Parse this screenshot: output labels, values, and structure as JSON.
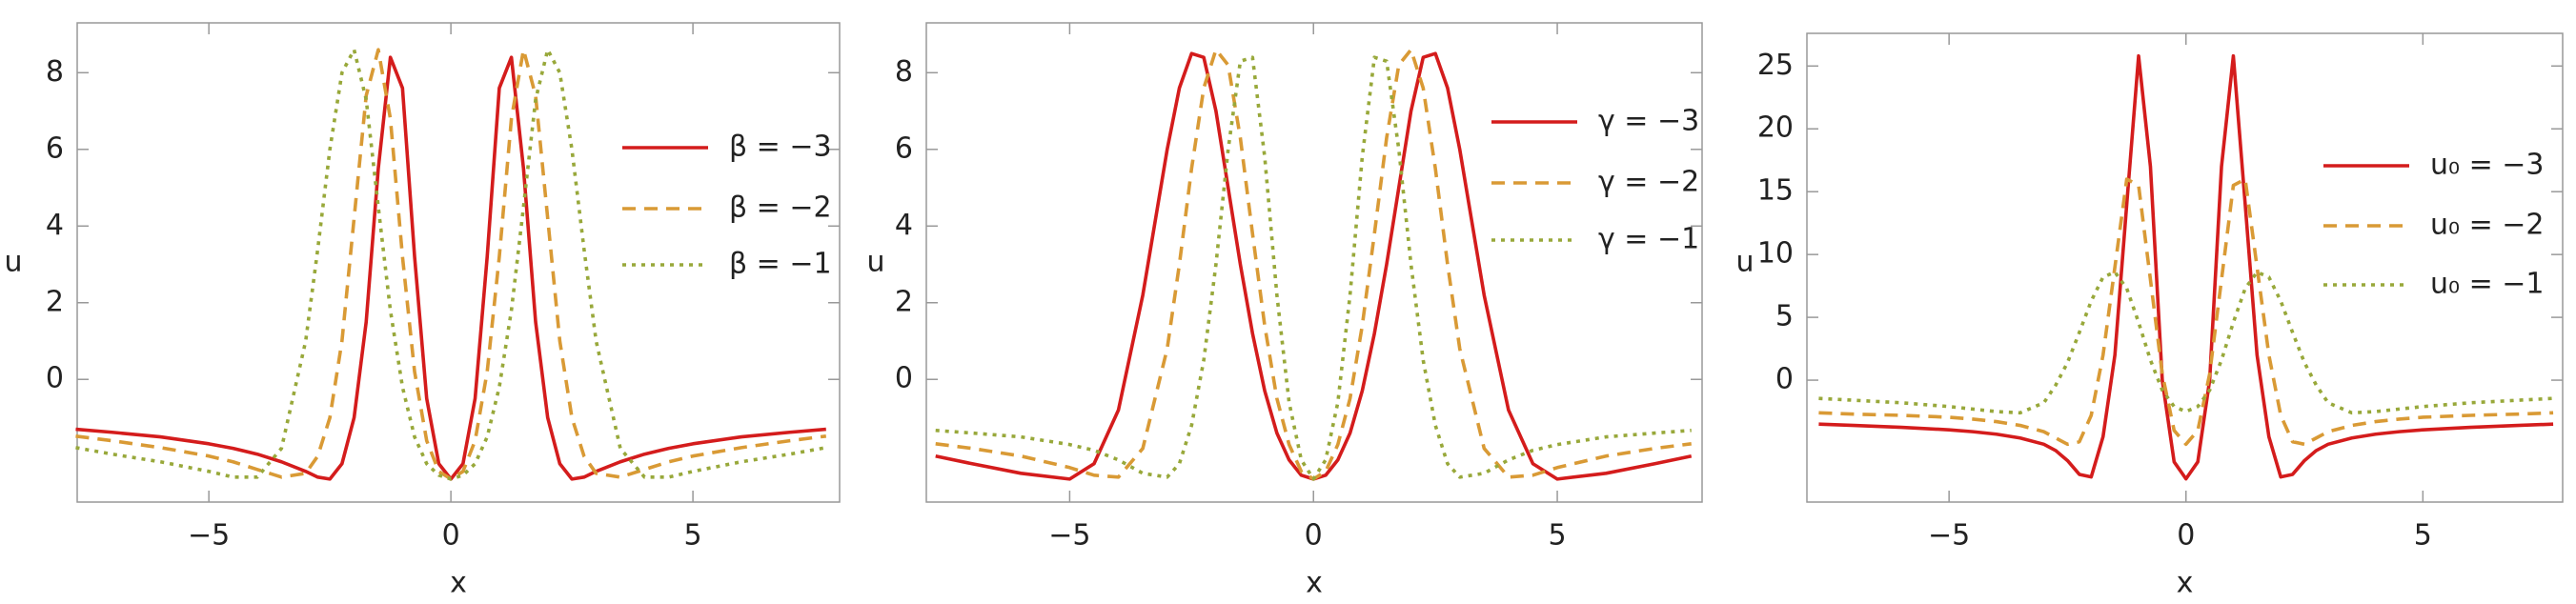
{
  "chart_data": [
    {
      "type": "line",
      "x_label": "x",
      "y_label": "u",
      "xlim": [
        -7.72,
        8.03
      ],
      "ylim": [
        -3.2,
        9.3
      ],
      "xticks": [
        {
          "value": -5,
          "label": "−5"
        },
        0,
        5
      ],
      "yticks": [
        0,
        2,
        4,
        6,
        8
      ],
      "x": [
        -7.75,
        -7,
        -6,
        -5,
        -4.5,
        -4,
        -3.5,
        -3,
        -2.75,
        -2.5,
        -2.25,
        -2,
        -1.75,
        -1.5,
        -1.25,
        -1,
        -0.75,
        -0.5,
        -0.25,
        0,
        0.25,
        0.5,
        0.75,
        1,
        1.25,
        1.5,
        1.75,
        2,
        2.25,
        2.5,
        2.75,
        3,
        3.5,
        4,
        4.5,
        5,
        6,
        7,
        7.75
      ],
      "series": [
        {
          "name": "β = −3",
          "color": "#d41c1c",
          "dash": "solid",
          "values": [
            -1.3,
            -1.38,
            -1.5,
            -1.68,
            -1.8,
            -1.95,
            -2.15,
            -2.4,
            -2.55,
            -2.6,
            -2.2,
            -1.0,
            1.5,
            5.5,
            8.4,
            7.6,
            3.2,
            -0.5,
            -2.2,
            -2.6,
            -2.2,
            -0.5,
            3.2,
            7.6,
            8.4,
            5.5,
            1.5,
            -1.0,
            -2.2,
            -2.6,
            -2.55,
            -2.4,
            -2.15,
            -1.95,
            -1.8,
            -1.68,
            -1.5,
            -1.38,
            -1.3
          ]
        },
        {
          "name": "β = −2",
          "color": "#d99a35",
          "dash": "dashed",
          "values": [
            -1.48,
            -1.6,
            -1.78,
            -2.0,
            -2.15,
            -2.35,
            -2.55,
            -2.45,
            -2.0,
            -1.0,
            1.0,
            4.2,
            7.4,
            8.6,
            6.8,
            3.2,
            0.2,
            -1.6,
            -2.4,
            -2.6,
            -2.4,
            -1.6,
            0.2,
            3.2,
            6.8,
            8.6,
            7.4,
            4.2,
            1.0,
            -1.0,
            -2.0,
            -2.45,
            -2.55,
            -2.35,
            -2.15,
            -2.0,
            -1.78,
            -1.6,
            -1.48
          ]
        },
        {
          "name": "β = −1",
          "color": "#98a83a",
          "dash": "dotted",
          "values": [
            -1.78,
            -1.95,
            -2.15,
            -2.4,
            -2.55,
            -2.55,
            -1.8,
            1.0,
            3.4,
            6.0,
            8.0,
            8.6,
            7.3,
            4.5,
            1.8,
            -0.2,
            -1.5,
            -2.2,
            -2.5,
            -2.6,
            -2.5,
            -2.2,
            -1.5,
            -0.2,
            1.8,
            4.5,
            7.3,
            8.6,
            8.0,
            6.0,
            3.4,
            1.0,
            -1.8,
            -2.55,
            -2.55,
            -2.4,
            -2.15,
            -1.95,
            -1.78
          ]
        }
      ]
    },
    {
      "type": "line",
      "x_label": "x",
      "y_label": "u",
      "xlim": [
        -7.94,
        7.97
      ],
      "ylim": [
        -3.2,
        9.3
      ],
      "xticks": [
        {
          "value": -5,
          "label": "−5"
        },
        0,
        5
      ],
      "yticks": [
        0,
        2,
        4,
        6,
        8
      ],
      "x": [
        -7.75,
        -7,
        -6,
        -5,
        -4.5,
        -4,
        -3.5,
        -3,
        -2.75,
        -2.5,
        -2.25,
        -2,
        -1.75,
        -1.5,
        -1.25,
        -1,
        -0.75,
        -0.5,
        -0.25,
        0,
        0.25,
        0.5,
        0.75,
        1,
        1.25,
        1.5,
        1.75,
        2,
        2.25,
        2.5,
        2.75,
        3,
        3.5,
        4,
        4.5,
        5,
        6,
        7,
        7.75
      ],
      "series": [
        {
          "name": "γ = −3",
          "color": "#d41c1c",
          "dash": "solid",
          "values": [
            -2.0,
            -2.2,
            -2.45,
            -2.6,
            -2.2,
            -0.8,
            2.2,
            6.0,
            7.6,
            8.5,
            8.4,
            7.0,
            5.0,
            3.0,
            1.2,
            -0.3,
            -1.4,
            -2.1,
            -2.5,
            -2.6,
            -2.5,
            -2.1,
            -1.4,
            -0.3,
            1.2,
            3.0,
            5.0,
            7.0,
            8.4,
            8.5,
            7.6,
            6.0,
            2.2,
            -0.8,
            -2.2,
            -2.6,
            -2.45,
            -2.2,
            -2.0
          ]
        },
        {
          "name": "γ = −2",
          "color": "#d99a35",
          "dash": "dashed",
          "values": [
            -1.68,
            -1.8,
            -2.0,
            -2.3,
            -2.5,
            -2.55,
            -1.8,
            0.8,
            3.0,
            5.5,
            7.6,
            8.6,
            8.2,
            6.3,
            3.8,
            1.4,
            -0.5,
            -1.7,
            -2.4,
            -2.6,
            -2.4,
            -1.7,
            -0.5,
            1.4,
            3.8,
            6.3,
            8.2,
            8.6,
            7.6,
            5.5,
            3.0,
            0.8,
            -1.8,
            -2.55,
            -2.5,
            -2.3,
            -2.0,
            -1.8,
            -1.68
          ]
        },
        {
          "name": "γ = −1",
          "color": "#98a83a",
          "dash": "dotted",
          "values": [
            -1.33,
            -1.4,
            -1.5,
            -1.7,
            -1.85,
            -2.1,
            -2.45,
            -2.55,
            -2.2,
            -1.2,
            0.5,
            3.0,
            6.0,
            8.3,
            8.4,
            5.8,
            2.2,
            -0.6,
            -2.1,
            -2.6,
            -2.1,
            -0.6,
            2.2,
            5.8,
            8.4,
            8.3,
            6.0,
            3.0,
            0.5,
            -1.2,
            -2.2,
            -2.55,
            -2.45,
            -2.1,
            -1.85,
            -1.7,
            -1.5,
            -1.4,
            -1.33
          ]
        }
      ]
    },
    {
      "type": "line",
      "x_label": "x",
      "y_label": "u",
      "xlim": [
        -8,
        7.95
      ],
      "ylim": [
        -9.7,
        27.6
      ],
      "xticks": [
        {
          "value": -5,
          "label": "−5"
        },
        0,
        5
      ],
      "yticks": [
        0,
        5,
        10,
        15,
        20,
        25
      ],
      "x": [
        -7.75,
        -7,
        -6,
        -5,
        -4.5,
        -4,
        -3.5,
        -3,
        -2.75,
        -2.5,
        -2.25,
        -2,
        -1.75,
        -1.5,
        -1.25,
        -1,
        -0.75,
        -0.5,
        -0.25,
        0,
        0.25,
        0.5,
        0.75,
        1,
        1.25,
        1.5,
        1.75,
        2,
        2.25,
        2.5,
        2.75,
        3,
        3.5,
        4,
        4.5,
        5,
        6,
        7,
        7.75
      ],
      "series": [
        {
          "name": "u₀ = −3",
          "color": "#d41c1c",
          "dash": "solid",
          "values": [
            -3.5,
            -3.6,
            -3.75,
            -3.95,
            -4.1,
            -4.3,
            -4.6,
            -5.1,
            -5.6,
            -6.4,
            -7.5,
            -7.7,
            -4.5,
            2,
            14,
            25.8,
            17,
            0,
            -6.5,
            -7.85,
            -6.5,
            0,
            17,
            25.8,
            14,
            2,
            -4.5,
            -7.7,
            -7.5,
            -6.4,
            -5.6,
            -5.1,
            -4.6,
            -4.3,
            -4.1,
            -3.95,
            -3.75,
            -3.6,
            -3.5
          ]
        },
        {
          "name": "u₀ = −2",
          "color": "#d99a35",
          "dash": "dashed",
          "values": [
            -2.6,
            -2.7,
            -2.8,
            -2.95,
            -3.1,
            -3.3,
            -3.6,
            -4.1,
            -4.6,
            -5.1,
            -4.9,
            -2.8,
            2,
            9,
            16,
            15.5,
            8,
            0.5,
            -4.0,
            -5.1,
            -4.0,
            0.5,
            8,
            15.5,
            16,
            9,
            2,
            -2.8,
            -4.9,
            -5.1,
            -4.6,
            -4.1,
            -3.6,
            -3.3,
            -3.1,
            -2.95,
            -2.8,
            -2.7,
            -2.6
          ]
        },
        {
          "name": "u₀ = −1",
          "color": "#98a83a",
          "dash": "dotted",
          "values": [
            -1.45,
            -1.6,
            -1.8,
            -2.1,
            -2.3,
            -2.5,
            -2.6,
            -1.8,
            -0.4,
            1.4,
            3.8,
            6.3,
            8.2,
            8.6,
            7.3,
            4.6,
            1.6,
            -0.8,
            -2.1,
            -2.5,
            -2.1,
            -0.8,
            1.6,
            4.6,
            7.3,
            8.6,
            8.2,
            6.3,
            3.8,
            1.4,
            -0.4,
            -1.8,
            -2.6,
            -2.5,
            -2.3,
            -2.1,
            -1.8,
            -1.6,
            -1.45
          ]
        }
      ]
    }
  ]
}
